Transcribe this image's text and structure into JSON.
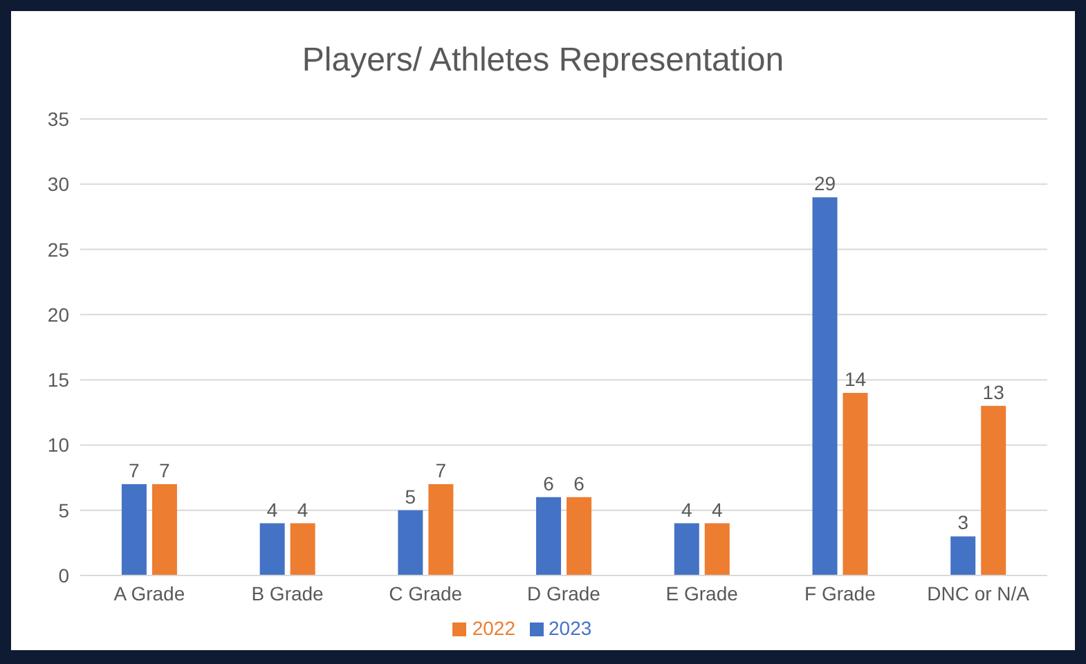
{
  "chart_data": {
    "type": "bar",
    "title": "Players/ Athletes Representation",
    "categories": [
      "A Grade",
      "B Grade",
      "C Grade",
      "D Grade",
      "E Grade",
      "F Grade",
      "DNC or N/A"
    ],
    "series": [
      {
        "name": "2023",
        "color": "#4472c4",
        "values": [
          7,
          4,
          5,
          6,
          4,
          29,
          3
        ]
      },
      {
        "name": "2022",
        "color": "#ed7d31",
        "values": [
          7,
          4,
          7,
          6,
          4,
          14,
          13
        ]
      }
    ],
    "ylim": [
      0,
      35
    ],
    "yticks": [
      0,
      5,
      10,
      15,
      20,
      25,
      30,
      35
    ],
    "grid": "y",
    "legend": "bottom",
    "data_labels": true
  }
}
